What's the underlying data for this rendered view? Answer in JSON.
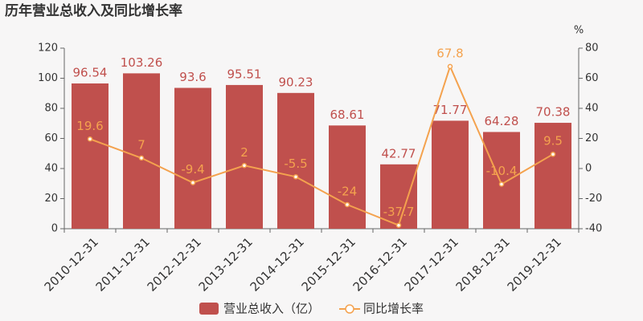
{
  "chart_data": {
    "type": "bar",
    "title": "历年营业总收入及同比增长率",
    "categories": [
      "2010-12-31",
      "2011-12-31",
      "2012-12-31",
      "2013-12-31",
      "2014-12-31",
      "2015-12-31",
      "2016-12-31",
      "2017-12-31",
      "2018-12-31",
      "2019-12-31"
    ],
    "series": [
      {
        "name": "营业总收入（亿）",
        "type": "bar",
        "color": "#c0504d",
        "values": [
          96.54,
          103.26,
          93.6,
          95.51,
          90.23,
          68.61,
          42.77,
          71.77,
          64.28,
          70.38
        ]
      },
      {
        "name": "同比增长率",
        "type": "line",
        "axis": "y2",
        "color": "#f4a24e",
        "values": [
          19.6,
          7,
          -9.4,
          2,
          -5.5,
          -24,
          -37.7,
          67.8,
          -10.4,
          9.5
        ]
      }
    ],
    "ylim": [
      0,
      120
    ],
    "yticks": [
      0,
      20,
      40,
      60,
      80,
      100,
      120
    ],
    "y2label": "%",
    "y2lim": [
      -40,
      80
    ],
    "y2ticks": [
      -40,
      -20,
      0,
      20,
      40,
      60,
      80
    ],
    "grid": false
  }
}
